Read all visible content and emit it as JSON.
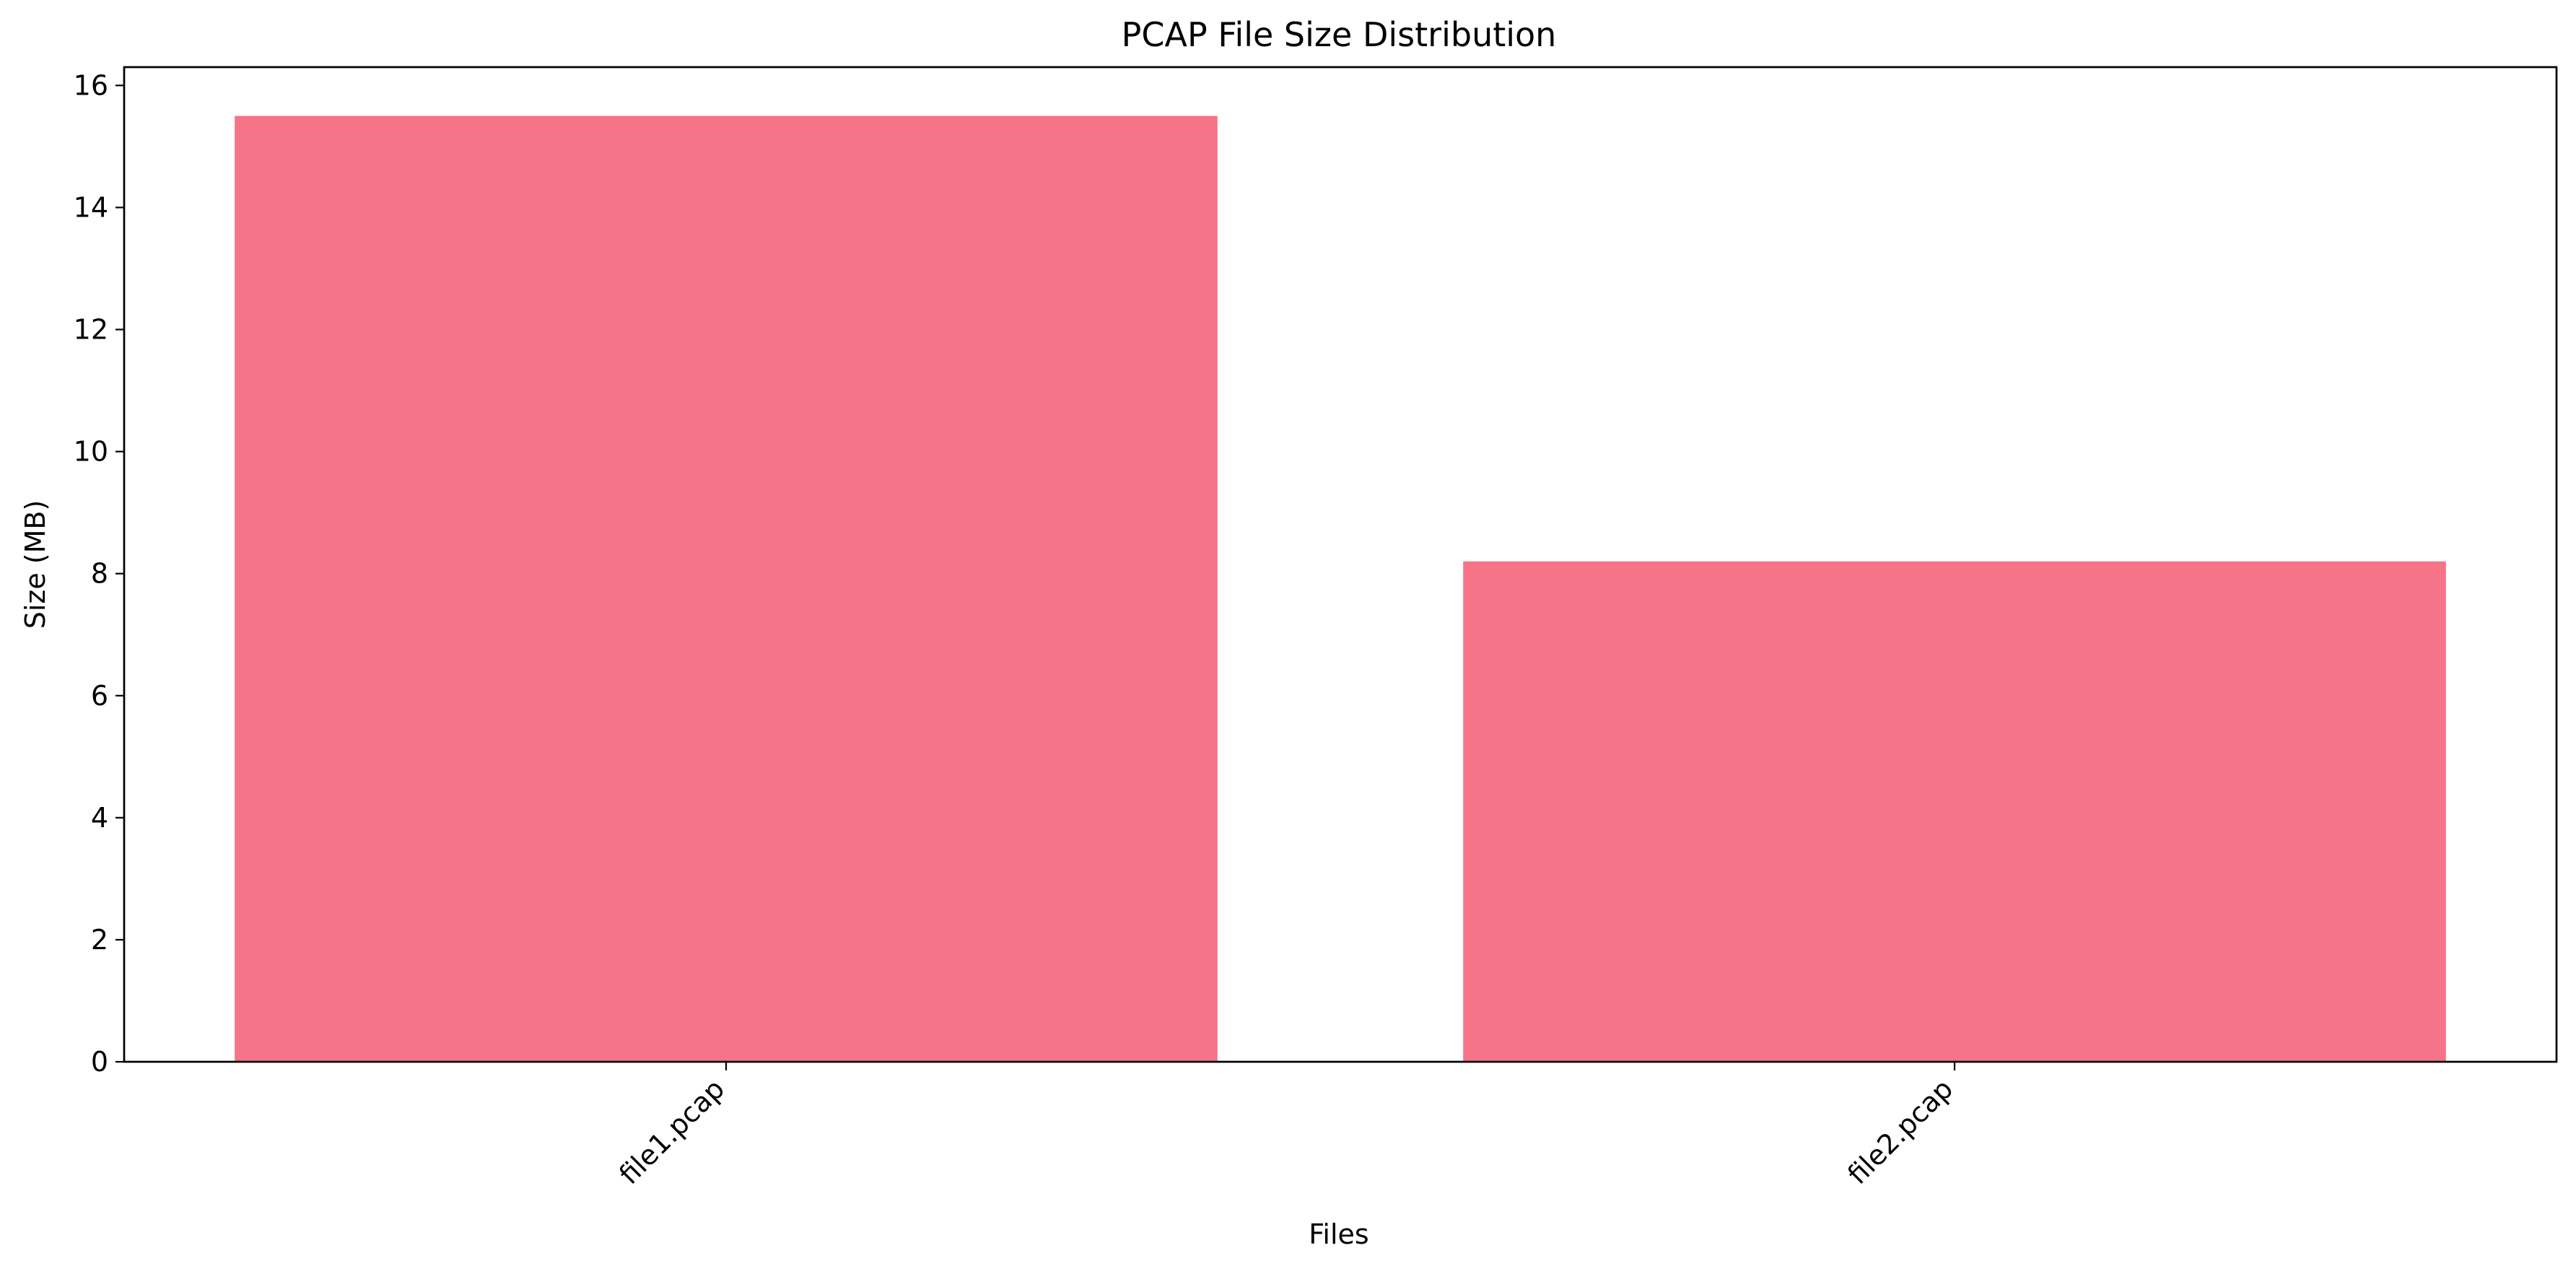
{
  "chart_data": {
    "type": "bar",
    "title": "PCAP File Size Distribution",
    "xlabel": "Files",
    "ylabel": "Size (MB)",
    "categories": [
      "file1.pcap",
      "file2.pcap"
    ],
    "values": [
      15.5,
      8.2
    ],
    "ylim": [
      0,
      16.3
    ],
    "yticks": [
      0,
      2,
      4,
      6,
      8,
      10,
      12,
      14,
      16
    ],
    "ytick_labels": [
      "0",
      "2",
      "4",
      "6",
      "8",
      "10",
      "12",
      "14",
      "16"
    ],
    "grid": false,
    "legend": "none",
    "bar_color": "#f67388"
  }
}
